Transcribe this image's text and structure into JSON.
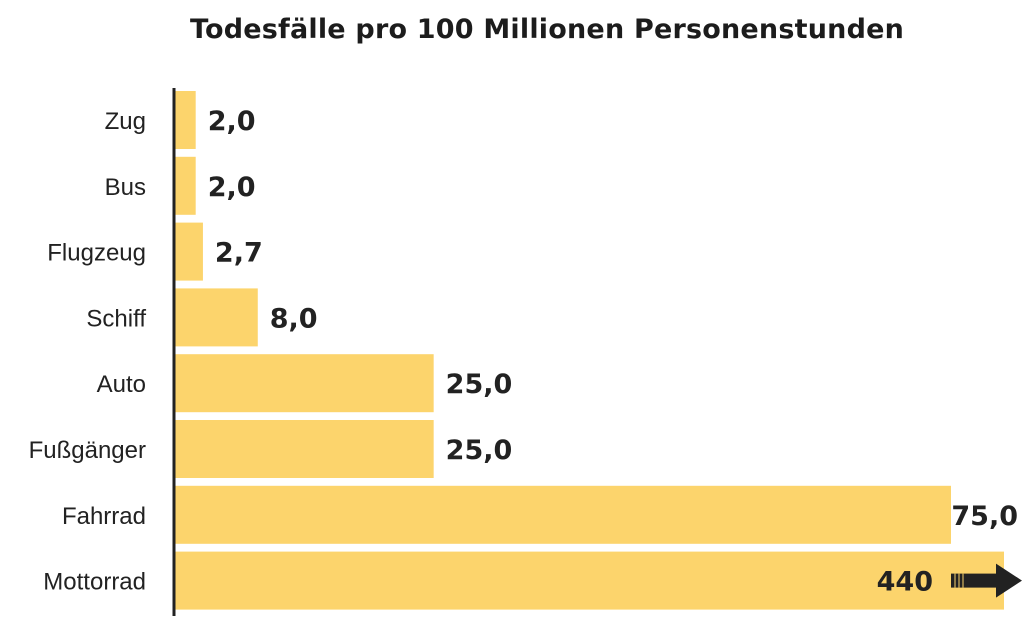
{
  "chart_data": {
    "type": "bar",
    "orientation": "horizontal",
    "title": "Todesfälle pro 100 Millionen Personenstunden",
    "categories": [
      "Zug",
      "Bus",
      "Flugzeug",
      "Schiff",
      "Auto",
      "Fußgänger",
      "Fahrrad",
      "Mottorrad"
    ],
    "values": [
      2.0,
      2.0,
      2.7,
      8.0,
      25.0,
      25.0,
      75.0,
      440
    ],
    "value_labels": [
      "2,0",
      "2,0",
      "2,7",
      "8,0",
      "25,0",
      "25,0",
      "75,0",
      "440"
    ],
    "truncated": [
      false,
      false,
      false,
      false,
      false,
      false,
      false,
      true
    ],
    "xlim": [
      0,
      80
    ],
    "grid": false,
    "bar_color": "#fcd46c",
    "axis_color": "#222222"
  }
}
